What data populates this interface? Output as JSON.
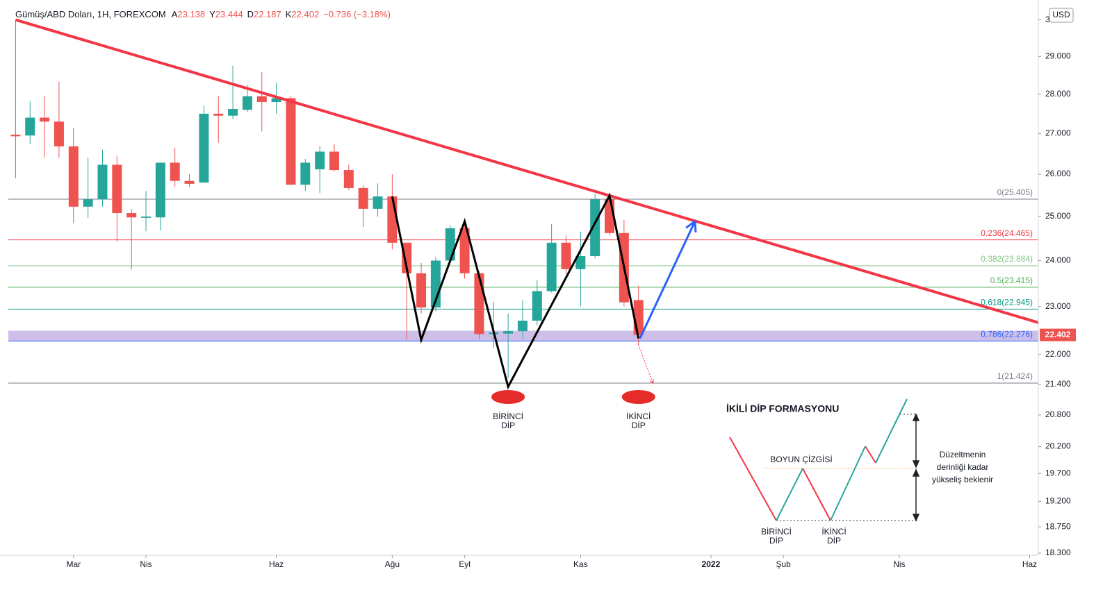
{
  "chart_data": {
    "type": "candlestick",
    "title": "Gümüş/ABD Doları, 1H, FOREXCOM",
    "ohlc_header": [
      {
        "label": "A",
        "value": 23.138
      },
      {
        "label": "Y",
        "value": 23.444
      },
      {
        "label": "D",
        "value": 22.187
      },
      {
        "label": "K",
        "value": 22.402
      }
    ],
    "change": "−0.736 (−3.18%)",
    "currency": "USD",
    "log_scale": true,
    "grid": false,
    "up_color": "#26a69a",
    "down_color": "#ef5350",
    "open": [
      26.97,
      26.95,
      27.4,
      27.3,
      26.68,
      25.23,
      25.4,
      26.23,
      25.08,
      24.97,
      24.98,
      26.28,
      25.84,
      25.8,
      27.5,
      27.45,
      27.6,
      27.95,
      27.8,
      27.9,
      25.75,
      26.12,
      26.55,
      26.1,
      25.67,
      25.18,
      25.47,
      24.4,
      23.72,
      22.98,
      24.0,
      24.73,
      23.72,
      22.42,
      22.43,
      22.48,
      22.7,
      23.33,
      24.4,
      23.81,
      24.1,
      25.4,
      24.62,
      23.138
    ],
    "high": [
      30.0,
      27.82,
      27.95,
      28.33,
      27.14,
      26.4,
      26.6,
      26.45,
      25.18,
      25.6,
      26.28,
      26.65,
      26.0,
      27.7,
      27.95,
      28.75,
      28.25,
      28.58,
      28.3,
      27.95,
      26.37,
      26.69,
      26.73,
      26.23,
      25.73,
      25.78,
      26.0,
      24.4,
      23.95,
      24.08,
      24.8,
      24.8,
      23.77,
      23.1,
      22.85,
      23.13,
      23.57,
      24.83,
      24.57,
      24.65,
      25.53,
      25.5,
      24.92,
      23.444
    ],
    "low": [
      25.9,
      26.73,
      26.4,
      26.4,
      24.85,
      24.97,
      25.23,
      24.43,
      23.8,
      24.66,
      24.68,
      25.7,
      25.7,
      25.8,
      26.77,
      27.37,
      27.55,
      27.05,
      27.5,
      25.75,
      25.6,
      25.55,
      26.07,
      25.62,
      24.76,
      25.0,
      24.25,
      22.3,
      22.85,
      22.9,
      23.97,
      23.6,
      22.31,
      22.13,
      21.53,
      22.32,
      22.6,
      23.3,
      23.7,
      23.0,
      24.05,
      24.57,
      23.0,
      22.187
    ],
    "close": [
      26.93,
      27.4,
      27.3,
      26.68,
      25.23,
      25.4,
      26.23,
      25.08,
      24.98,
      25.0,
      26.28,
      25.84,
      25.77,
      27.5,
      27.45,
      27.62,
      27.95,
      27.8,
      27.9,
      25.75,
      26.28,
      26.55,
      26.1,
      25.67,
      25.18,
      25.47,
      24.4,
      23.72,
      22.98,
      24.0,
      24.73,
      23.72,
      22.42,
      22.45,
      22.48,
      22.7,
      23.33,
      24.4,
      23.81,
      24.1,
      25.4,
      24.62,
      23.09,
      22.402
    ],
    "xlim": [
      -0.5,
      70.6
    ],
    "xticks": [
      {
        "value": 4,
        "label": "Mar"
      },
      {
        "value": 9,
        "label": "Nis"
      },
      {
        "value": 18,
        "label": "Haz"
      },
      {
        "value": 26,
        "label": "Ağu"
      },
      {
        "value": 31,
        "label": "Eyl"
      },
      {
        "value": 39,
        "label": "Kas"
      },
      {
        "value": 48,
        "label": "2022"
      },
      {
        "value": 53,
        "label": "Şub"
      },
      {
        "value": 61,
        "label": "Nis"
      },
      {
        "value": 70,
        "label": "Haz"
      }
    ],
    "ylim": [
      18.3,
      30.4
    ],
    "yticks": [
      {
        "value": 30,
        "label": "30.000"
      },
      {
        "value": 29,
        "label": "29.000"
      },
      {
        "value": 28,
        "label": "28.000"
      },
      {
        "value": 27,
        "label": "27.000"
      },
      {
        "value": 26,
        "label": "26.000"
      },
      {
        "value": 25,
        "label": "25.000"
      },
      {
        "value": 24,
        "label": "24.000"
      },
      {
        "value": 23,
        "label": "23.000"
      },
      {
        "value": 22,
        "label": "22.000"
      },
      {
        "value": 21.4,
        "label": "21.400"
      },
      {
        "value": 20.8,
        "label": "20.800"
      },
      {
        "value": 20.2,
        "label": "20.200"
      },
      {
        "value": 19.7,
        "label": "19.700"
      },
      {
        "value": 19.2,
        "label": "19.200"
      },
      {
        "value": 18.75,
        "label": "18.750"
      },
      {
        "value": 18.3,
        "label": "18.300"
      }
    ],
    "fib_levels": [
      {
        "label": "0(25.405)",
        "value": 25.405,
        "color": "#787b86"
      },
      {
        "label": "0.236(24.465)",
        "value": 24.465,
        "color": "#f23645"
      },
      {
        "label": "0.382(23.884)",
        "value": 23.884,
        "color": "#81c784"
      },
      {
        "label": "0.5(23.415)",
        "value": 23.415,
        "color": "#4caf50"
      },
      {
        "label": "0.618(22.945)",
        "value": 22.945,
        "color": "#089981"
      },
      {
        "label": "0.786(22.276)",
        "value": 22.276,
        "color": "#2962ff"
      },
      {
        "label": "1(21.424)",
        "value": 21.424,
        "color": "#787b86"
      }
    ],
    "support_zone": {
      "low": 22.276,
      "high": 22.49,
      "color": "#b39ddb"
    },
    "trendline": {
      "x": [
        0,
        70.6
      ],
      "values": [
        30.0,
        22.66
      ],
      "color": "#f23645"
    },
    "pattern_line": {
      "x": [
        26,
        28,
        31,
        34,
        41,
        43
      ],
      "values": [
        25.47,
        22.3,
        24.89,
        21.35,
        25.49,
        22.33
      ],
      "color": "#000000"
    },
    "target_arrow": {
      "x": [
        43.1,
        46.9
      ],
      "values": [
        22.33,
        24.89
      ],
      "color": "#2962ff"
    },
    "breakdown_arrow": {
      "x": [
        43,
        44
      ],
      "values": [
        22.2,
        21.42
      ],
      "color": "#f23645"
    },
    "bottom_labels": [
      [
        "BİRİNCİ",
        "DİP"
      ],
      [
        "İKİNCİ",
        "DİP"
      ]
    ],
    "inset": {
      "title": "İKİLİ DİP FORMASYONU",
      "neckline": "BOYUN ÇİZGİSİ",
      "first": [
        "BİRİNCİ",
        "DİP"
      ],
      "second": [
        "İKİNCİ",
        "DİP"
      ],
      "note": [
        "Düzeltmenin",
        "derinliği kadar",
        "yükseliş beklenir"
      ]
    }
  }
}
